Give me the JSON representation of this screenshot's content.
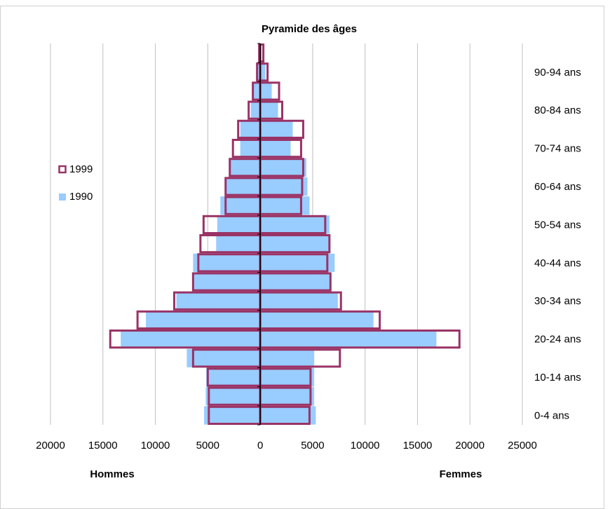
{
  "chart_data": {
    "type": "pyramid",
    "title": "Pyramide des âges",
    "left_label": "Hommes",
    "right_label": "Femmes",
    "categories": [
      "0-4 ans",
      null,
      "10-14 ans",
      null,
      "20-24 ans",
      null,
      "30-34 ans",
      null,
      "40-44 ans",
      null,
      "50-54 ans",
      null,
      "60-64 ans",
      null,
      "70-74 ans",
      null,
      "80-84 ans",
      null,
      "90-94 ans",
      null
    ],
    "series": [
      {
        "name": "1990",
        "color": "#99ccff",
        "filled": true,
        "hommes": [
          -5350,
          -5200,
          -5150,
          -7000,
          -13300,
          -10900,
          -8000,
          -6400,
          -6400,
          -4200,
          -4100,
          -3800,
          -3300,
          -2900,
          -1900,
          -1900,
          -900,
          -700,
          -300,
          -100
        ],
        "femmes": [
          5300,
          5150,
          5150,
          5150,
          16800,
          10800,
          7400,
          6700,
          7100,
          6700,
          6600,
          4700,
          4500,
          4400,
          2900,
          3100,
          1700,
          1100,
          500,
          100
        ]
      },
      {
        "name": "1999",
        "color": "#993366",
        "filled": false,
        "hommes": [
          -4900,
          -4900,
          -5000,
          -6400,
          -14300,
          -11700,
          -8200,
          -6400,
          -5900,
          -5700,
          -5400,
          -3300,
          -3300,
          -2900,
          -2600,
          -2100,
          -1100,
          -700,
          -300,
          -100
        ],
        "femmes": [
          4700,
          4800,
          4800,
          7600,
          19000,
          11400,
          7700,
          6700,
          6400,
          6600,
          6200,
          3900,
          4000,
          4100,
          3900,
          4100,
          2100,
          1800,
          700,
          300
        ]
      }
    ],
    "legend": "left",
    "xlim": [
      -20000,
      25000
    ],
    "xticks": [
      {
        "value": -20000,
        "label": "20000"
      },
      {
        "value": -15000,
        "label": "15000"
      },
      {
        "value": -10000,
        "label": "10000"
      },
      {
        "value": -5000,
        "label": "5000"
      },
      0,
      5000,
      10000,
      15000,
      20000,
      25000
    ],
    "grid": true
  }
}
